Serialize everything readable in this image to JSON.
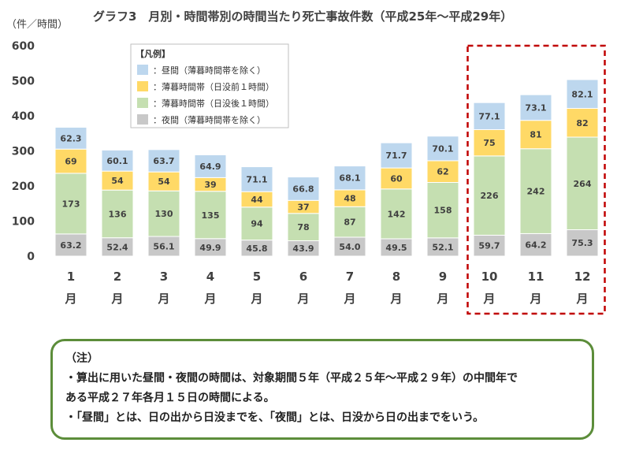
{
  "chart_data": {
    "type": "bar",
    "stacked": true,
    "title": "グラフ3　月別・時間帯別の時間当たり死亡事故件数（平成25年〜平成29年）",
    "ylabel": "（件／時間）",
    "ylim": [
      0,
      600
    ],
    "yticks": [
      0,
      100,
      200,
      300,
      400,
      500,
      600
    ],
    "categories": [
      "1",
      "2",
      "3",
      "4",
      "5",
      "6",
      "7",
      "8",
      "9",
      "10",
      "11",
      "12"
    ],
    "category_suffix": "月",
    "legend_title": "【凡例】",
    "legend_placement": "top-left",
    "series": [
      {
        "name": "：夜間（薄暮時間帯を除く）",
        "color": "#c8c8c8",
        "values": [
          63.2,
          52.4,
          56.1,
          49.9,
          45.8,
          43.9,
          54.0,
          49.5,
          52.1,
          59.7,
          64.2,
          75.3
        ],
        "labels": [
          "63.2",
          "52.4",
          "56.1",
          "49.9",
          "45.8",
          "43.9",
          "54.0",
          "49.5",
          "52.1",
          "59.7",
          "64.2",
          "75.3"
        ]
      },
      {
        "name": "：薄暮時間帯（日没後１時間）",
        "color": "#c5dfb1",
        "values": [
          173,
          136,
          130,
          135,
          94,
          78,
          87,
          142,
          158,
          226,
          242,
          264
        ],
        "labels": [
          "173",
          "136",
          "130",
          "135",
          "94",
          "78",
          "87",
          "142",
          "158",
          "226",
          "242",
          "264"
        ]
      },
      {
        "name": "：薄暮時間帯（日没前１時間）",
        "color": "#ffd966",
        "values": [
          69,
          54,
          54,
          39,
          44,
          37,
          48,
          60,
          62,
          75,
          81,
          82
        ],
        "labels": [
          "69",
          "54",
          "54",
          "39",
          "44",
          "37",
          "48",
          "60",
          "62",
          "75",
          "81",
          "82"
        ]
      },
      {
        "name": "：昼間（薄暮時間帯を除く）",
        "color": "#bdd7ee",
        "values": [
          62.3,
          60.1,
          63.7,
          64.9,
          71.1,
          66.8,
          68.1,
          71.7,
          70.1,
          77.1,
          73.1,
          82.1
        ],
        "labels": [
          "62.3",
          "60.1",
          "63.7",
          "64.9",
          "71.1",
          "66.8",
          "68.1",
          "71.7",
          "70.1",
          "77.1",
          "73.1",
          "82.1"
        ]
      }
    ],
    "legend_order": [
      3,
      2,
      1,
      0
    ],
    "highlight_categories": [
      "10",
      "11",
      "12"
    ],
    "highlight_color": "#c00000",
    "grid": false
  },
  "note": {
    "heading": "（注）",
    "lines": [
      "・算出に用いた昼間・夜間の時間は、対象期間５年（平成２５年〜平成２９年）の中間年で",
      "ある平成２７年各月１５日の時間による。",
      "・「昼間」とは、日の出から日没までを、「夜間」とは、日没から日の出までをいう。"
    ]
  }
}
